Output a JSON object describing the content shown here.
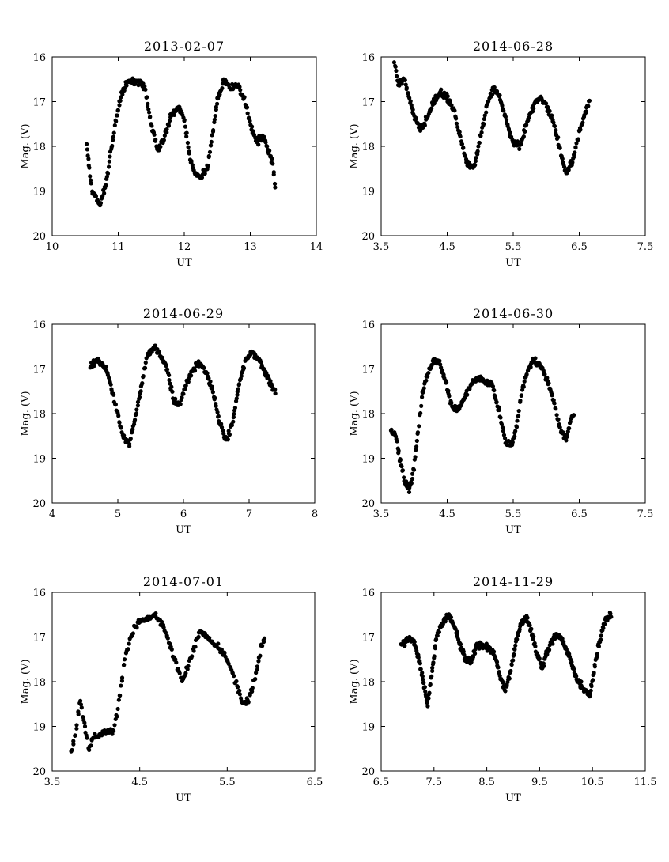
{
  "chart_data": [
    {
      "type": "scatter",
      "title": "2013-02-07",
      "xlabel": "UT",
      "ylabel": "Mag. (V)",
      "xlim": [
        10,
        14
      ],
      "ylim": [
        16,
        20
      ],
      "y_inverted": true,
      "x_ticks": [
        "10",
        "11",
        "12",
        "13",
        "14"
      ],
      "y_ticks": [
        "16",
        "17",
        "18",
        "19",
        "20"
      ],
      "series": [
        {
          "x": [],
          "y": []
        }
      ],
      "curve": [
        [
          10.52,
          17.9
        ],
        [
          10.6,
          19.0
        ],
        [
          10.72,
          19.3
        ],
        [
          10.82,
          18.8
        ],
        [
          10.9,
          18.0
        ],
        [
          10.98,
          17.3
        ],
        [
          11.05,
          16.8
        ],
        [
          11.15,
          16.55
        ],
        [
          11.3,
          16.55
        ],
        [
          11.4,
          16.7
        ],
        [
          11.5,
          17.5
        ],
        [
          11.6,
          18.1
        ],
        [
          11.7,
          17.8
        ],
        [
          11.8,
          17.3
        ],
        [
          11.92,
          17.1
        ],
        [
          12.0,
          17.4
        ],
        [
          12.08,
          18.2
        ],
        [
          12.15,
          18.6
        ],
        [
          12.25,
          18.7
        ],
        [
          12.35,
          18.5
        ],
        [
          12.42,
          17.8
        ],
        [
          12.5,
          17.0
        ],
        [
          12.6,
          16.5
        ],
        [
          12.7,
          16.7
        ],
        [
          12.8,
          16.6
        ],
        [
          12.92,
          17.0
        ],
        [
          13.02,
          17.6
        ],
        [
          13.1,
          17.9
        ],
        [
          13.2,
          17.8
        ],
        [
          13.3,
          18.2
        ],
        [
          13.35,
          18.5
        ],
        [
          13.38,
          19.0
        ]
      ]
    },
    {
      "type": "scatter",
      "title": "2014-06-28",
      "xlabel": "UT",
      "ylabel": "Mag. (V)",
      "xlim": [
        3.5,
        7.5
      ],
      "ylim": [
        16,
        20
      ],
      "y_inverted": true,
      "x_ticks": [
        "3.5",
        "4.5",
        "5.5",
        "6.5",
        "7.5"
      ],
      "y_ticks": [
        "16",
        "17",
        "18",
        "19",
        "20"
      ],
      "series": [
        {
          "x": [],
          "y": []
        }
      ],
      "curve": [
        [
          3.7,
          16.1
        ],
        [
          3.75,
          16.6
        ],
        [
          3.85,
          16.5
        ],
        [
          3.92,
          16.9
        ],
        [
          4.0,
          17.3
        ],
        [
          4.08,
          17.6
        ],
        [
          4.15,
          17.5
        ],
        [
          4.22,
          17.3
        ],
        [
          4.3,
          17.0
        ],
        [
          4.4,
          16.8
        ],
        [
          4.5,
          16.9
        ],
        [
          4.6,
          17.2
        ],
        [
          4.7,
          17.8
        ],
        [
          4.8,
          18.4
        ],
        [
          4.9,
          18.5
        ],
        [
          5.0,
          17.8
        ],
        [
          5.1,
          17.1
        ],
        [
          5.2,
          16.7
        ],
        [
          5.3,
          16.9
        ],
        [
          5.4,
          17.5
        ],
        [
          5.5,
          17.9
        ],
        [
          5.6,
          18.0
        ],
        [
          5.7,
          17.5
        ],
        [
          5.8,
          17.1
        ],
        [
          5.9,
          16.9
        ],
        [
          6.0,
          17.1
        ],
        [
          6.1,
          17.4
        ],
        [
          6.2,
          18.0
        ],
        [
          6.3,
          18.6
        ],
        [
          6.4,
          18.3
        ],
        [
          6.5,
          17.7
        ],
        [
          6.6,
          17.2
        ],
        [
          6.65,
          17.0
        ]
      ]
    },
    {
      "type": "scatter",
      "title": "2014-06-29",
      "xlabel": "UT",
      "ylabel": "Mag. (V)",
      "xlim": [
        4,
        8
      ],
      "ylim": [
        16,
        20
      ],
      "y_inverted": true,
      "x_ticks": [
        "4",
        "5",
        "6",
        "7",
        "8"
      ],
      "y_ticks": [
        "16",
        "17",
        "18",
        "19",
        "20"
      ],
      "series": [
        {
          "x": [],
          "y": []
        }
      ],
      "curve": [
        [
          4.58,
          16.9
        ],
        [
          4.7,
          16.8
        ],
        [
          4.82,
          17.0
        ],
        [
          4.9,
          17.4
        ],
        [
          5.0,
          18.0
        ],
        [
          5.08,
          18.5
        ],
        [
          5.18,
          18.7
        ],
        [
          5.28,
          18.0
        ],
        [
          5.38,
          17.2
        ],
        [
          5.45,
          16.7
        ],
        [
          5.55,
          16.5
        ],
        [
          5.65,
          16.7
        ],
        [
          5.75,
          17.0
        ],
        [
          5.85,
          17.7
        ],
        [
          5.95,
          17.8
        ],
        [
          6.05,
          17.3
        ],
        [
          6.15,
          17.0
        ],
        [
          6.25,
          16.85
        ],
        [
          6.35,
          17.1
        ],
        [
          6.45,
          17.5
        ],
        [
          6.55,
          18.2
        ],
        [
          6.65,
          18.6
        ],
        [
          6.75,
          18.2
        ],
        [
          6.85,
          17.3
        ],
        [
          6.95,
          16.8
        ],
        [
          7.05,
          16.6
        ],
        [
          7.15,
          16.8
        ],
        [
          7.25,
          17.1
        ],
        [
          7.35,
          17.4
        ],
        [
          7.4,
          17.5
        ]
      ]
    },
    {
      "type": "scatter",
      "title": "2014-06-30",
      "xlabel": "UT",
      "ylabel": "Mag. (V)",
      "xlim": [
        3.5,
        7.5
      ],
      "ylim": [
        16,
        20
      ],
      "y_inverted": true,
      "x_ticks": [
        "3.5",
        "4.5",
        "5.5",
        "6.5",
        "7.5"
      ],
      "y_ticks": [
        "16",
        "17",
        "18",
        "19",
        "20"
      ],
      "series": [
        {
          "x": [],
          "y": []
        }
      ],
      "curve": [
        [
          3.65,
          18.4
        ],
        [
          3.72,
          18.5
        ],
        [
          3.78,
          19.0
        ],
        [
          3.85,
          19.5
        ],
        [
          3.92,
          19.7
        ],
        [
          3.98,
          19.4
        ],
        [
          4.05,
          18.5
        ],
        [
          4.12,
          17.6
        ],
        [
          4.2,
          17.1
        ],
        [
          4.28,
          16.85
        ],
        [
          4.38,
          16.85
        ],
        [
          4.48,
          17.3
        ],
        [
          4.58,
          17.9
        ],
        [
          4.68,
          17.9
        ],
        [
          4.78,
          17.6
        ],
        [
          4.88,
          17.3
        ],
        [
          4.98,
          17.2
        ],
        [
          5.08,
          17.3
        ],
        [
          5.18,
          17.35
        ],
        [
          5.28,
          17.9
        ],
        [
          5.38,
          18.6
        ],
        [
          5.48,
          18.7
        ],
        [
          5.55,
          18.3
        ],
        [
          5.62,
          17.6
        ],
        [
          5.7,
          17.1
        ],
        [
          5.8,
          16.8
        ],
        [
          5.9,
          16.9
        ],
        [
          6.0,
          17.2
        ],
        [
          6.1,
          17.6
        ],
        [
          6.2,
          18.3
        ],
        [
          6.3,
          18.6
        ],
        [
          6.38,
          18.1
        ],
        [
          6.42,
          18.0
        ]
      ]
    },
    {
      "type": "scatter",
      "title": "2014-07-01",
      "xlabel": "UT",
      "ylabel": "Mag. (V)",
      "xlim": [
        3.5,
        6.5
      ],
      "ylim": [
        16,
        20
      ],
      "y_inverted": true,
      "x_ticks": [
        "3.5",
        "4.5",
        "5.5",
        "6.5"
      ],
      "y_ticks": [
        "16",
        "17",
        "18",
        "19",
        "20"
      ],
      "series": [
        {
          "x": [],
          "y": []
        }
      ],
      "curve": [
        [
          3.72,
          19.6
        ],
        [
          3.78,
          19.0
        ],
        [
          3.82,
          18.4
        ],
        [
          3.87,
          19.0
        ],
        [
          3.92,
          19.5
        ],
        [
          3.98,
          19.2
        ],
        [
          4.05,
          19.2
        ],
        [
          4.12,
          19.1
        ],
        [
          4.2,
          19.1
        ],
        [
          4.25,
          18.6
        ],
        [
          4.32,
          17.6
        ],
        [
          4.4,
          17.0
        ],
        [
          4.48,
          16.65
        ],
        [
          4.58,
          16.6
        ],
        [
          4.68,
          16.5
        ],
        [
          4.78,
          16.8
        ],
        [
          4.88,
          17.4
        ],
        [
          4.98,
          18.0
        ],
        [
          5.08,
          17.5
        ],
        [
          5.18,
          16.9
        ],
        [
          5.28,
          17.0
        ],
        [
          5.38,
          17.2
        ],
        [
          5.48,
          17.4
        ],
        [
          5.58,
          17.9
        ],
        [
          5.68,
          18.5
        ],
        [
          5.75,
          18.4
        ],
        [
          5.82,
          17.9
        ],
        [
          5.88,
          17.3
        ],
        [
          5.93,
          17.0
        ]
      ]
    },
    {
      "type": "scatter",
      "title": "2014-11-29",
      "xlabel": "UT",
      "ylabel": "Mag. (V)",
      "xlim": [
        6.5,
        11.5
      ],
      "ylim": [
        16,
        20
      ],
      "y_inverted": true,
      "x_ticks": [
        "6.5",
        "7.5",
        "8.5",
        "9.5",
        "10.5",
        "11.5"
      ],
      "y_ticks": [
        "16",
        "17",
        "18",
        "19",
        "20"
      ],
      "series": [
        {
          "x": [],
          "y": []
        }
      ],
      "curve": [
        [
          6.88,
          17.2
        ],
        [
          7.0,
          17.05
        ],
        [
          7.12,
          17.1
        ],
        [
          7.22,
          17.5
        ],
        [
          7.3,
          18.0
        ],
        [
          7.38,
          18.5
        ],
        [
          7.45,
          17.9
        ],
        [
          7.55,
          17.0
        ],
        [
          7.65,
          16.7
        ],
        [
          7.78,
          16.5
        ],
        [
          7.9,
          16.8
        ],
        [
          8.0,
          17.2
        ],
        [
          8.1,
          17.5
        ],
        [
          8.2,
          17.6
        ],
        [
          8.3,
          17.2
        ],
        [
          8.42,
          17.2
        ],
        [
          8.55,
          17.25
        ],
        [
          8.65,
          17.4
        ],
        [
          8.75,
          17.9
        ],
        [
          8.85,
          18.2
        ],
        [
          8.95,
          17.8
        ],
        [
          9.05,
          17.1
        ],
        [
          9.15,
          16.7
        ],
        [
          9.25,
          16.55
        ],
        [
          9.35,
          16.9
        ],
        [
          9.45,
          17.4
        ],
        [
          9.55,
          17.7
        ],
        [
          9.65,
          17.3
        ],
        [
          9.8,
          16.95
        ],
        [
          9.9,
          17.0
        ],
        [
          10.05,
          17.4
        ],
        [
          10.2,
          17.9
        ],
        [
          10.35,
          18.2
        ],
        [
          10.45,
          18.3
        ],
        [
          10.55,
          17.6
        ],
        [
          10.65,
          17.0
        ],
        [
          10.75,
          16.6
        ],
        [
          10.85,
          16.5
        ]
      ]
    }
  ]
}
